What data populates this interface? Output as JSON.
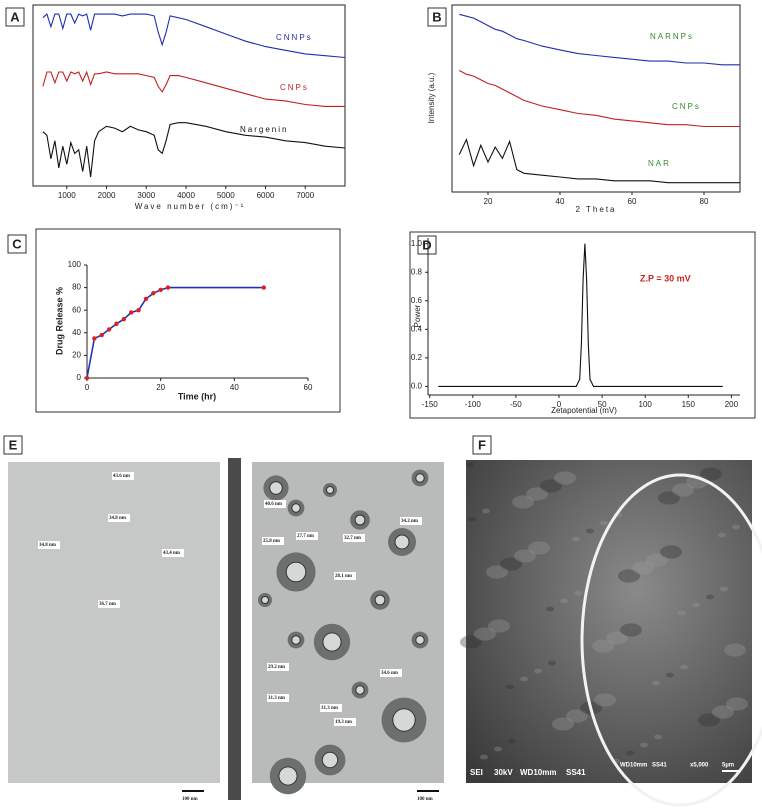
{
  "chart_data": [
    {
      "type": "line",
      "label": "A",
      "xlabel": "Wave number (cm)⁻¹",
      "x": [
        400,
        500,
        600,
        700,
        800,
        900,
        1000,
        1100,
        1200,
        1300,
        1400,
        1500,
        1600,
        1700,
        1800,
        2000,
        2200,
        2400,
        2600,
        2800,
        3000,
        3200,
        3300,
        3400,
        3500,
        3600,
        3800,
        4000,
        4500,
        5000,
        5500,
        6000,
        6500,
        7000,
        7500,
        8000
      ],
      "series": [
        {
          "name": "CNNPs",
          "color": "#1f2fb0",
          "values": [
            93,
            95,
            88,
            95,
            95,
            87,
            95,
            95,
            90,
            95,
            94,
            95,
            86,
            95,
            95,
            95,
            95,
            94,
            95,
            95,
            95,
            94,
            85,
            78,
            85,
            94,
            93,
            92,
            88,
            84,
            80,
            77,
            75,
            73,
            72,
            71
          ]
        },
        {
          "name": "CNPs",
          "color": "#c4201e",
          "values": [
            55,
            63,
            63,
            57,
            63,
            63,
            58,
            63,
            62,
            63,
            58,
            63,
            56,
            62,
            62,
            63,
            62,
            62,
            62,
            62,
            61,
            60,
            55,
            52,
            56,
            61,
            61,
            60,
            57,
            54,
            51,
            48,
            47,
            45,
            44,
            44
          ]
        },
        {
          "name": "Nargenin",
          "color": "#111111",
          "values": [
            30,
            28,
            15,
            25,
            10,
            22,
            12,
            24,
            18,
            20,
            8,
            22,
            5,
            25,
            30,
            33,
            32,
            30,
            33,
            31,
            30,
            28,
            20,
            18,
            25,
            34,
            35,
            35,
            33,
            30,
            28,
            27,
            25,
            24,
            22,
            21
          ]
        }
      ],
      "xlim": [
        150,
        8000
      ],
      "ylim": [
        0,
        100
      ],
      "xticks": [
        1000,
        2000,
        3000,
        4000,
        5000,
        6000,
        7000
      ]
    },
    {
      "type": "line",
      "label": "B",
      "xlabel": "2 Theta",
      "ylabel": "Intensity (a.u.)",
      "x": [
        12,
        14,
        16,
        18,
        20,
        22,
        24,
        26,
        28,
        30,
        35,
        40,
        45,
        50,
        55,
        60,
        65,
        70,
        75,
        80,
        85,
        90
      ],
      "series": [
        {
          "name": "NARNPs",
          "color": "#1f2fb0",
          "values": [
            95,
            94,
            93,
            91,
            89,
            87,
            86,
            84,
            82,
            81,
            78,
            76,
            74,
            73,
            72,
            71,
            70,
            70,
            69,
            69,
            68,
            68
          ]
        },
        {
          "name": "CNPs",
          "color": "#c4201e",
          "values": [
            65,
            63,
            62,
            60,
            58,
            57,
            55,
            53,
            51,
            49,
            46,
            44,
            42,
            41,
            39,
            38,
            37,
            36,
            36,
            35,
            35,
            35
          ]
        },
        {
          "name": "NAR",
          "color": "#111111",
          "values": [
            20,
            28,
            14,
            25,
            16,
            24,
            18,
            27,
            12,
            10,
            9,
            8,
            7,
            7,
            6,
            6,
            6,
            5,
            5,
            5,
            5,
            5
          ]
        }
      ],
      "label_color": "#2e8b2e",
      "xlim": [
        10,
        90
      ],
      "ylim": [
        0,
        100
      ],
      "xticks": [
        20,
        40,
        60,
        80
      ]
    },
    {
      "type": "line",
      "label": "C",
      "xlabel": "Time (hr)",
      "ylabel": "Drug Release %",
      "x": [
        0,
        2,
        4,
        6,
        8,
        10,
        12,
        14,
        16,
        18,
        20,
        22,
        48
      ],
      "values": [
        0,
        35,
        38,
        43,
        48,
        52,
        58,
        60,
        70,
        75,
        78,
        80,
        80
      ],
      "color": "#2233bb",
      "marker_color": "#e02020",
      "xlim": [
        0,
        60
      ],
      "ylim": [
        0,
        100
      ],
      "xticks": [
        0,
        20,
        40,
        60
      ],
      "yticks": [
        0,
        20,
        40,
        60,
        80,
        100
      ]
    },
    {
      "type": "line",
      "label": "D",
      "xlabel": "Zetapotential (mV)",
      "ylabel": "Power",
      "annotation": "Z.P = 30 mV",
      "annotation_color": "#d02020",
      "x": [
        -140,
        0,
        20,
        24,
        26,
        28,
        30,
        32,
        34,
        36,
        40,
        60,
        190
      ],
      "values": [
        0,
        0,
        0,
        0.05,
        0.3,
        0.75,
        1.0,
        0.75,
        0.3,
        0.05,
        0,
        0,
        0
      ],
      "color": "#111111",
      "xlim": [
        -152,
        210
      ],
      "ylim": [
        -0.06,
        1.04
      ],
      "xticks": [
        -150,
        -100,
        -50,
        0,
        50,
        100,
        150,
        200
      ],
      "yticks": [
        {
          "value": 0,
          "label": "0.0"
        },
        0.2,
        0.4,
        0.6,
        0.8,
        {
          "value": 1,
          "label": "1.0"
        }
      ]
    }
  ],
  "images": {
    "E": {
      "label": "E",
      "left": {
        "annotations": [
          "43.6 nm",
          "34.8 nm",
          "34.8 nm",
          "43.4 nm",
          "36.7 nm"
        ],
        "scale_bar": "100 nm"
      },
      "right": {
        "annotations": [
          "40.6 nm",
          "25.8 nm",
          "27.7 nm",
          "32.7 nm",
          "34.2 nm",
          "28.1 nm",
          "29.2 nm",
          "34.6 nm",
          "31.3 nm",
          "31.3 nm",
          "19.3 nm"
        ],
        "scale_bar": "100 nm"
      }
    },
    "F": {
      "label": "F",
      "info": [
        "SEI",
        "30kV",
        "WD10mm",
        "SS41"
      ],
      "info2": [
        "WD10mm",
        "SS41",
        "x5,000",
        "5µm"
      ]
    }
  }
}
